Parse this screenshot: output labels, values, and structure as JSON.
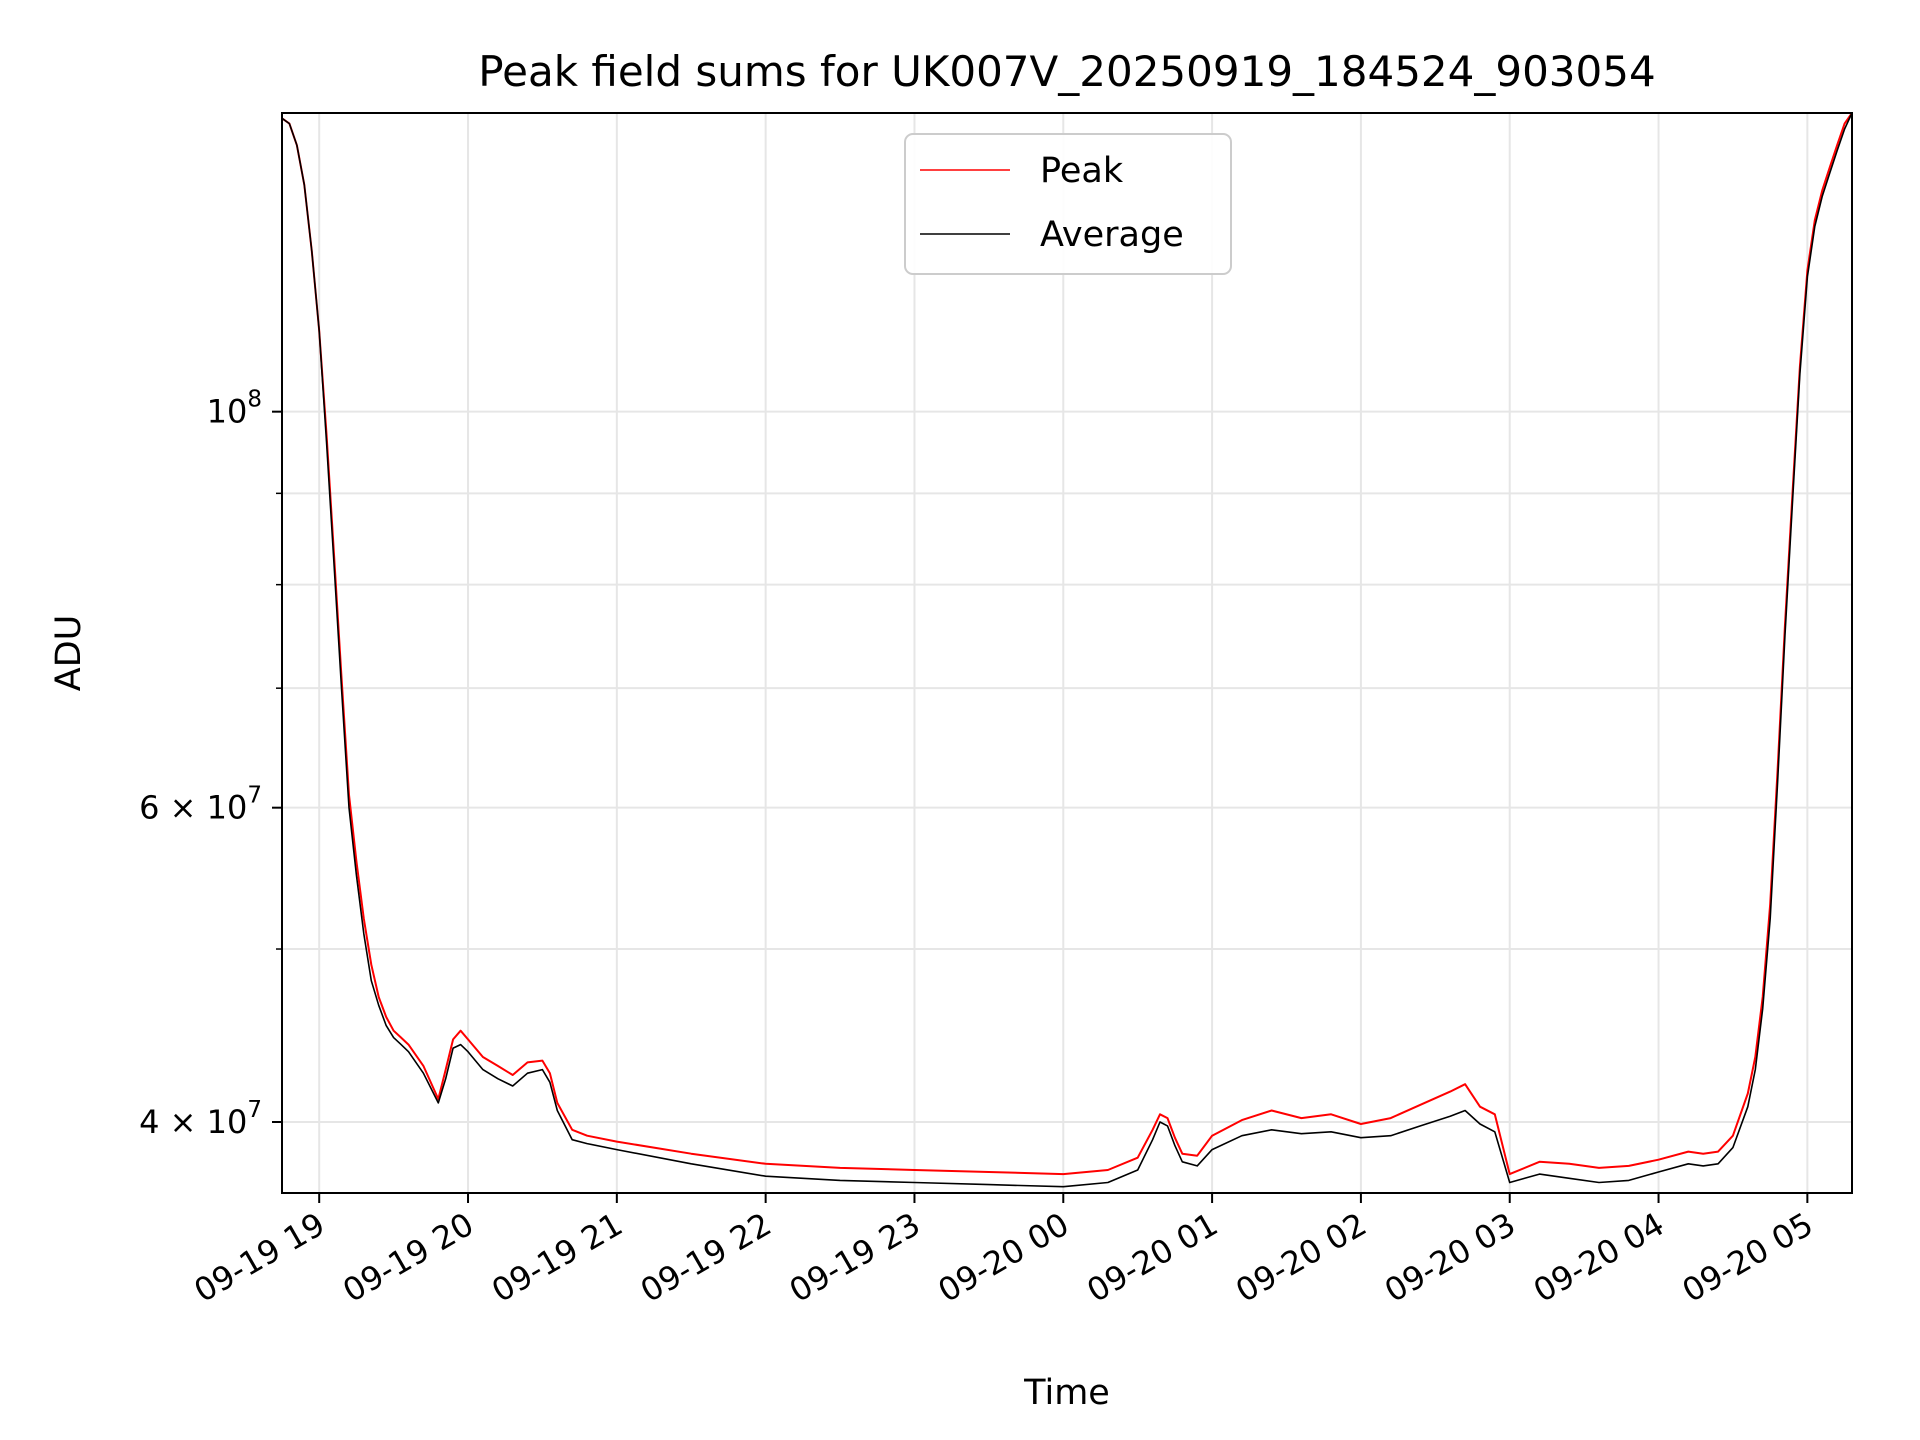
{
  "chart_data": {
    "type": "line",
    "title": "Peak field sums for UK007V_20250919_184524_903054",
    "xlabel": "Time",
    "ylabel": "ADU",
    "yscale": "log",
    "ylim": [
      36500000,
      147000000
    ],
    "xlim": [
      -0.25,
      10.3
    ],
    "x_unit": "hours since 09-19 19:00",
    "grid": true,
    "legend_position": "upper center",
    "x_ticks": [
      {
        "value": 0,
        "label": "09-19 19"
      },
      {
        "value": 1,
        "label": "09-19 20"
      },
      {
        "value": 2,
        "label": "09-19 21"
      },
      {
        "value": 3,
        "label": "09-19 22"
      },
      {
        "value": 4,
        "label": "09-19 23"
      },
      {
        "value": 5,
        "label": "09-20 00"
      },
      {
        "value": 6,
        "label": "09-20 01"
      },
      {
        "value": 7,
        "label": "09-20 02"
      },
      {
        "value": 8,
        "label": "09-20 03"
      },
      {
        "value": 9,
        "label": "09-20 04"
      },
      {
        "value": 10,
        "label": "09-20 05"
      }
    ],
    "y_major_ticks": [
      {
        "value": 100000000,
        "base": "10",
        "exp": "8"
      },
      {
        "value": 60000000,
        "mantissa": "6",
        "base": "10",
        "exp": "7"
      },
      {
        "value": 40000000,
        "mantissa": "4",
        "base": "10",
        "exp": "7"
      }
    ],
    "y_minor_gridlines": [
      50000000,
      70000000,
      80000000,
      90000000
    ],
    "series": [
      {
        "name": "Peak",
        "color": "#ff0000",
        "x": [
          -0.25,
          -0.2,
          -0.15,
          -0.1,
          -0.05,
          0.0,
          0.05,
          0.1,
          0.15,
          0.2,
          0.25,
          0.3,
          0.35,
          0.4,
          0.45,
          0.5,
          0.55,
          0.6,
          0.7,
          0.8,
          0.85,
          0.9,
          0.95,
          1.0,
          1.1,
          1.2,
          1.3,
          1.4,
          1.5,
          1.55,
          1.6,
          1.7,
          1.8,
          2.0,
          2.5,
          3.0,
          3.5,
          4.0,
          4.5,
          5.0,
          5.3,
          5.5,
          5.6,
          5.65,
          5.7,
          5.75,
          5.8,
          5.9,
          6.0,
          6.2,
          6.4,
          6.6,
          6.8,
          7.0,
          7.2,
          7.4,
          7.6,
          7.7,
          7.8,
          7.9,
          8.0,
          8.2,
          8.4,
          8.6,
          8.8,
          9.0,
          9.2,
          9.3,
          9.4,
          9.5,
          9.6,
          9.65,
          9.7,
          9.75,
          9.8,
          9.85,
          9.9,
          9.95,
          10.0,
          10.05,
          10.1,
          10.15,
          10.2,
          10.25,
          10.3
        ],
        "y": [
          146000000,
          145000000,
          141000000,
          134000000,
          123000000,
          111000000,
          97000000,
          83000000,
          71000000,
          61000000,
          56000000,
          52000000,
          49000000,
          47000000,
          45800000,
          45000000,
          44600000,
          44200000,
          43000000,
          41200000,
          42800000,
          44500000,
          45000000,
          44500000,
          43500000,
          43000000,
          42500000,
          43200000,
          43300000,
          42600000,
          41000000,
          39600000,
          39300000,
          39000000,
          38400000,
          37900000,
          37700000,
          37600000,
          37500000,
          37400000,
          37600000,
          38200000,
          39600000,
          40400000,
          40200000,
          39200000,
          38400000,
          38300000,
          39300000,
          40100000,
          40600000,
          40200000,
          40400000,
          39900000,
          40200000,
          40900000,
          41600000,
          42000000,
          40800000,
          40400000,
          37400000,
          38000000,
          37900000,
          37700000,
          37800000,
          38100000,
          38500000,
          38400000,
          38500000,
          39300000,
          41500000,
          43500000,
          47000000,
          53000000,
          63000000,
          76000000,
          90000000,
          106000000,
          120000000,
          128000000,
          133000000,
          137000000,
          141000000,
          145000000,
          147000000
        ]
      },
      {
        "name": "Average",
        "color": "#000000",
        "x": [
          -0.25,
          -0.2,
          -0.15,
          -0.1,
          -0.05,
          0.0,
          0.05,
          0.1,
          0.15,
          0.2,
          0.25,
          0.3,
          0.35,
          0.4,
          0.45,
          0.5,
          0.55,
          0.6,
          0.7,
          0.8,
          0.85,
          0.9,
          0.95,
          1.0,
          1.1,
          1.2,
          1.3,
          1.4,
          1.5,
          1.55,
          1.6,
          1.7,
          1.8,
          2.0,
          2.5,
          3.0,
          3.5,
          4.0,
          4.5,
          5.0,
          5.3,
          5.5,
          5.6,
          5.65,
          5.7,
          5.75,
          5.8,
          5.9,
          6.0,
          6.2,
          6.4,
          6.6,
          6.8,
          7.0,
          7.2,
          7.4,
          7.6,
          7.7,
          7.8,
          7.9,
          8.0,
          8.2,
          8.4,
          8.6,
          8.8,
          9.0,
          9.2,
          9.3,
          9.4,
          9.5,
          9.6,
          9.65,
          9.7,
          9.75,
          9.8,
          9.85,
          9.9,
          9.95,
          10.0,
          10.05,
          10.1,
          10.15,
          10.2,
          10.25,
          10.3
        ],
        "y": [
          146000000,
          145000000,
          141000000,
          134000000,
          123000000,
          111000000,
          96000000,
          82000000,
          70000000,
          60000000,
          55000000,
          51000000,
          48000000,
          46500000,
          45300000,
          44600000,
          44200000,
          43800000,
          42600000,
          41000000,
          42300000,
          44000000,
          44200000,
          43800000,
          42800000,
          42300000,
          41900000,
          42600000,
          42800000,
          42100000,
          40600000,
          39100000,
          38900000,
          38600000,
          37900000,
          37300000,
          37100000,
          37000000,
          36900000,
          36800000,
          37000000,
          37600000,
          39100000,
          40000000,
          39800000,
          38800000,
          38000000,
          37800000,
          38600000,
          39300000,
          39600000,
          39400000,
          39500000,
          39200000,
          39300000,
          39800000,
          40300000,
          40600000,
          39900000,
          39500000,
          37000000,
          37400000,
          37200000,
          37000000,
          37100000,
          37500000,
          37900000,
          37800000,
          37900000,
          38700000,
          40800000,
          42800000,
          46300000,
          52000000,
          62000000,
          75000000,
          89000000,
          105000000,
          119000000,
          127000000,
          132000000,
          136000000,
          140000000,
          144000000,
          147000000
        ]
      }
    ]
  }
}
